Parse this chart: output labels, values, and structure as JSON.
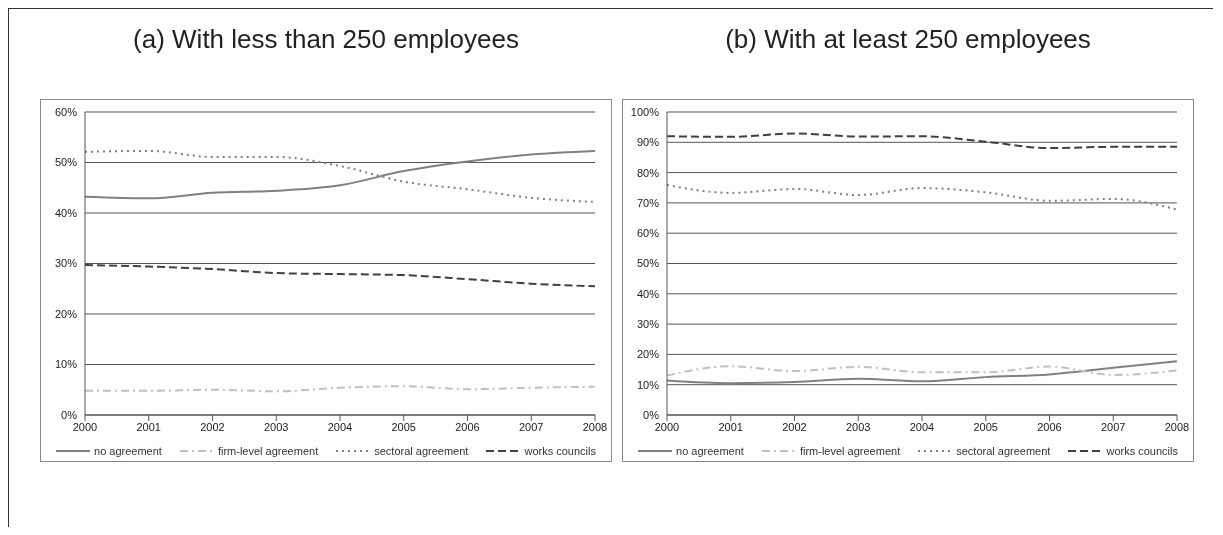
{
  "chart_data": [
    {
      "type": "line",
      "title": "(a) With less than 250 employees",
      "categories": [
        "2000",
        "2001",
        "2002",
        "2003",
        "2004",
        "2005",
        "2006",
        "2007",
        "2008"
      ],
      "ylim": [
        0,
        60
      ],
      "yticks": [
        {
          "value": 0,
          "label": "0%"
        },
        {
          "value": 10,
          "label": "10%"
        },
        {
          "value": 20,
          "label": "20%"
        },
        {
          "value": 30,
          "label": "30%"
        },
        {
          "value": 40,
          "label": "40%"
        },
        {
          "value": 50,
          "label": "50%"
        },
        {
          "value": 60,
          "label": "60%"
        }
      ],
      "grid": "y",
      "legend": "bottom",
      "marker": "none",
      "series": [
        {
          "name": "no agreement",
          "color": "#808080",
          "line_style": "solid",
          "values": [
            43.2,
            42.9,
            44.0,
            44.4,
            45.5,
            48.3,
            50.2,
            51.6,
            52.3
          ]
        },
        {
          "name": "firm-level agreement",
          "color": "#c0c0c0",
          "line_style": "dashdot",
          "values": [
            4.8,
            4.8,
            5.0,
            4.7,
            5.4,
            5.7,
            5.1,
            5.4,
            5.6
          ]
        },
        {
          "name": "sectoral agreement",
          "color": "#808080",
          "line_style": "dotted",
          "values": [
            52.1,
            52.3,
            51.1,
            51.1,
            49.3,
            46.2,
            44.7,
            43.0,
            42.2
          ]
        },
        {
          "name": "works councils",
          "color": "#404040",
          "line_style": "dashed",
          "values": [
            29.7,
            29.4,
            28.9,
            28.1,
            27.9,
            27.7,
            26.9,
            26.0,
            25.5
          ]
        }
      ]
    },
    {
      "type": "line",
      "title": "(b) With at least 250 employees",
      "categories": [
        "2000",
        "2001",
        "2002",
        "2003",
        "2004",
        "2005",
        "2006",
        "2007",
        "2008"
      ],
      "ylim": [
        0,
        100
      ],
      "yticks": [
        {
          "value": 0,
          "label": "0%"
        },
        {
          "value": 10,
          "label": "10%"
        },
        {
          "value": 20,
          "label": "20%"
        },
        {
          "value": 30,
          "label": "30%"
        },
        {
          "value": 40,
          "label": "40%"
        },
        {
          "value": 50,
          "label": "50%"
        },
        {
          "value": 60,
          "label": "60%"
        },
        {
          "value": 70,
          "label": "70%"
        },
        {
          "value": 80,
          "label": "80%"
        },
        {
          "value": 90,
          "label": "90%"
        },
        {
          "value": 100,
          "label": "100%"
        }
      ],
      "grid": "y",
      "legend": "bottom",
      "marker": "none",
      "series": [
        {
          "name": "no agreement",
          "color": "#808080",
          "line_style": "solid",
          "values": [
            11.4,
            10.5,
            10.9,
            12.0,
            11.1,
            12.5,
            13.4,
            15.6,
            17.7
          ]
        },
        {
          "name": "firm-level agreement",
          "color": "#c0c0c0",
          "line_style": "dashdot",
          "values": [
            13.0,
            16.1,
            14.5,
            15.9,
            14.1,
            14.1,
            16.0,
            13.2,
            14.7
          ]
        },
        {
          "name": "sectoral agreement",
          "color": "#808080",
          "line_style": "dotted",
          "values": [
            75.9,
            73.3,
            74.6,
            72.6,
            74.9,
            73.5,
            70.7,
            71.3,
            67.8
          ]
        },
        {
          "name": "works councils",
          "color": "#404040",
          "line_style": "dashed",
          "values": [
            92.0,
            91.8,
            92.9,
            91.9,
            92.0,
            90.2,
            88.1,
            88.5,
            88.5
          ]
        }
      ]
    }
  ]
}
